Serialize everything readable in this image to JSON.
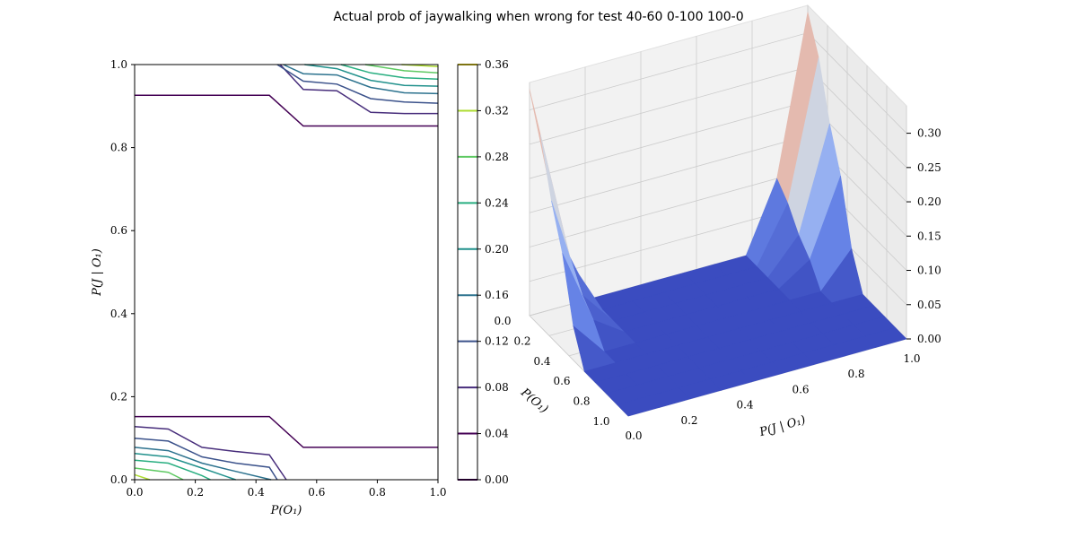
{
  "title": "Actual prob of jaywalking when wrong for test 40-60 0-100 100-0",
  "chart_data": [
    {
      "type": "contour",
      "xlabel": "P(O_1)",
      "ylabel": "P(J | O_1)",
      "xlim": [
        0,
        1
      ],
      "ylim": [
        0,
        1
      ],
      "xticks": [
        "0.0",
        "0.2",
        "0.4",
        "0.6",
        "0.8",
        "1.0"
      ],
      "yticks": [
        "0.0",
        "0.2",
        "0.4",
        "0.6",
        "0.8",
        "1.0"
      ],
      "colorbar": {
        "levels": [
          0.0,
          0.04,
          0.08,
          0.12,
          0.16,
          0.2,
          0.24,
          0.28,
          0.32,
          0.36
        ],
        "labels": [
          "0.00",
          "0.04",
          "0.08",
          "0.12",
          "0.16",
          "0.20",
          "0.24",
          "0.28",
          "0.32",
          "0.36"
        ],
        "colors": [
          "#440154",
          "#472d7b",
          "#3b528b",
          "#2c728e",
          "#21918c",
          "#28ae80",
          "#5ec962",
          "#addc30",
          "#fde725"
        ]
      },
      "contours": [
        {
          "level": 0.04,
          "points": [
            [
              0.0,
              0.926
            ],
            [
              0.444,
              0.926
            ],
            [
              0.556,
              0.852
            ],
            [
              1.0,
              0.852
            ]
          ]
        },
        {
          "level": 0.04,
          "points": [
            [
              0.0,
              0.152
            ],
            [
              0.444,
              0.152
            ],
            [
              0.556,
              0.078
            ],
            [
              1.0,
              0.078
            ]
          ]
        },
        {
          "level": 0.08,
          "points": [
            [
              0.0,
              0.128
            ],
            [
              0.111,
              0.122
            ],
            [
              0.222,
              0.078
            ],
            [
              0.333,
              0.068
            ],
            [
              0.444,
              0.06
            ],
            [
              0.5,
              0.0
            ]
          ]
        },
        {
          "level": 0.12,
          "points": [
            [
              0.0,
              0.1
            ],
            [
              0.111,
              0.093
            ],
            [
              0.222,
              0.055
            ],
            [
              0.333,
              0.04
            ],
            [
              0.444,
              0.03
            ],
            [
              0.47,
              0.0
            ]
          ]
        },
        {
          "level": 0.16,
          "points": [
            [
              0.0,
              0.078
            ],
            [
              0.111,
              0.07
            ],
            [
              0.222,
              0.04
            ],
            [
              0.333,
              0.02
            ],
            [
              0.45,
              0.0
            ]
          ]
        },
        {
          "level": 0.2,
          "points": [
            [
              0.0,
              0.063
            ],
            [
              0.111,
              0.055
            ],
            [
              0.222,
              0.028
            ],
            [
              0.333,
              0.0
            ]
          ]
        },
        {
          "level": 0.24,
          "points": [
            [
              0.0,
              0.047
            ],
            [
              0.111,
              0.04
            ],
            [
              0.222,
              0.01
            ],
            [
              0.25,
              0.0
            ]
          ]
        },
        {
          "level": 0.28,
          "points": [
            [
              0.0,
              0.028
            ],
            [
              0.111,
              0.018
            ],
            [
              0.16,
              0.0
            ]
          ]
        },
        {
          "level": 0.32,
          "points": [
            [
              0.0,
              0.012
            ],
            [
              0.05,
              0.0
            ]
          ]
        },
        {
          "level": 0.08,
          "points": [
            [
              0.48,
              1.0
            ],
            [
              0.556,
              0.94
            ],
            [
              0.667,
              0.937
            ],
            [
              0.778,
              0.885
            ],
            [
              0.889,
              0.882
            ],
            [
              1.0,
              0.882
            ]
          ]
        },
        {
          "level": 0.12,
          "points": [
            [
              0.47,
              1.0
            ],
            [
              0.556,
              0.96
            ],
            [
              0.667,
              0.953
            ],
            [
              0.778,
              0.918
            ],
            [
              0.889,
              0.91
            ],
            [
              1.0,
              0.907
            ]
          ]
        },
        {
          "level": 0.16,
          "points": [
            [
              0.49,
              1.0
            ],
            [
              0.556,
              0.978
            ],
            [
              0.667,
              0.975
            ],
            [
              0.778,
              0.945
            ],
            [
              0.889,
              0.932
            ],
            [
              1.0,
              0.93
            ]
          ]
        },
        {
          "level": 0.2,
          "points": [
            [
              0.56,
              1.0
            ],
            [
              0.667,
              0.99
            ],
            [
              0.778,
              0.962
            ],
            [
              0.889,
              0.95
            ],
            [
              1.0,
              0.948
            ]
          ]
        },
        {
          "level": 0.24,
          "points": [
            [
              0.68,
              1.0
            ],
            [
              0.778,
              0.98
            ],
            [
              0.889,
              0.968
            ],
            [
              1.0,
              0.965
            ]
          ]
        },
        {
          "level": 0.28,
          "points": [
            [
              0.76,
              1.0
            ],
            [
              0.889,
              0.985
            ],
            [
              1.0,
              0.98
            ]
          ]
        },
        {
          "level": 0.32,
          "points": [
            [
              0.88,
              1.0
            ],
            [
              1.0,
              0.995
            ]
          ]
        }
      ]
    },
    {
      "type": "surface3d",
      "xlabel": "P(O_1)",
      "ylabel": "P(J | O_1)",
      "xticks": [
        "0.0",
        "0.2",
        "0.4",
        "0.6",
        "0.8",
        "1.0"
      ],
      "yticks": [
        "0.0",
        "0.2",
        "0.4",
        "0.6",
        "0.8",
        "1.0"
      ],
      "zticks": [
        "0.00",
        "0.05",
        "0.10",
        "0.15",
        "0.20",
        "0.25",
        "0.30"
      ],
      "zlim": [
        0,
        0.34
      ],
      "colormap": "coolwarm",
      "surface": {
        "x": [
          0.0,
          0.111,
          0.222,
          0.333,
          0.444,
          0.556,
          0.667,
          0.778,
          0.889,
          1.0
        ],
        "y": [
          0.0,
          0.111,
          0.222,
          0.333,
          0.444,
          0.556,
          0.667,
          0.778,
          0.889,
          1.0
        ],
        "z": [
          [
            0.33,
            0.1,
            0.0,
            0.0,
            0.0,
            0.0,
            0.0,
            0.0,
            0.1,
            0.33
          ],
          [
            0.28,
            0.08,
            0.0,
            0.0,
            0.0,
            0.0,
            0.0,
            0.0,
            0.08,
            0.28
          ],
          [
            0.2,
            0.05,
            0.0,
            0.0,
            0.0,
            0.0,
            0.0,
            0.0,
            0.05,
            0.2
          ],
          [
            0.14,
            0.03,
            0.0,
            0.0,
            0.0,
            0.0,
            0.0,
            0.0,
            0.03,
            0.14
          ],
          [
            0.05,
            0.0,
            0.0,
            0.0,
            0.0,
            0.0,
            0.0,
            0.0,
            0.0,
            0.05
          ],
          [
            0.0,
            0.0,
            0.0,
            0.0,
            0.0,
            0.0,
            0.0,
            0.0,
            0.0,
            0.0
          ],
          [
            0.0,
            0.0,
            0.0,
            0.0,
            0.0,
            0.0,
            0.0,
            0.0,
            0.0,
            0.0
          ],
          [
            0.0,
            0.0,
            0.0,
            0.0,
            0.0,
            0.0,
            0.0,
            0.0,
            0.0,
            0.0
          ],
          [
            0.0,
            0.0,
            0.0,
            0.0,
            0.0,
            0.0,
            0.0,
            0.0,
            0.0,
            0.0
          ],
          [
            0.0,
            0.0,
            0.0,
            0.0,
            0.0,
            0.0,
            0.0,
            0.0,
            0.0,
            0.0
          ]
        ]
      }
    }
  ]
}
